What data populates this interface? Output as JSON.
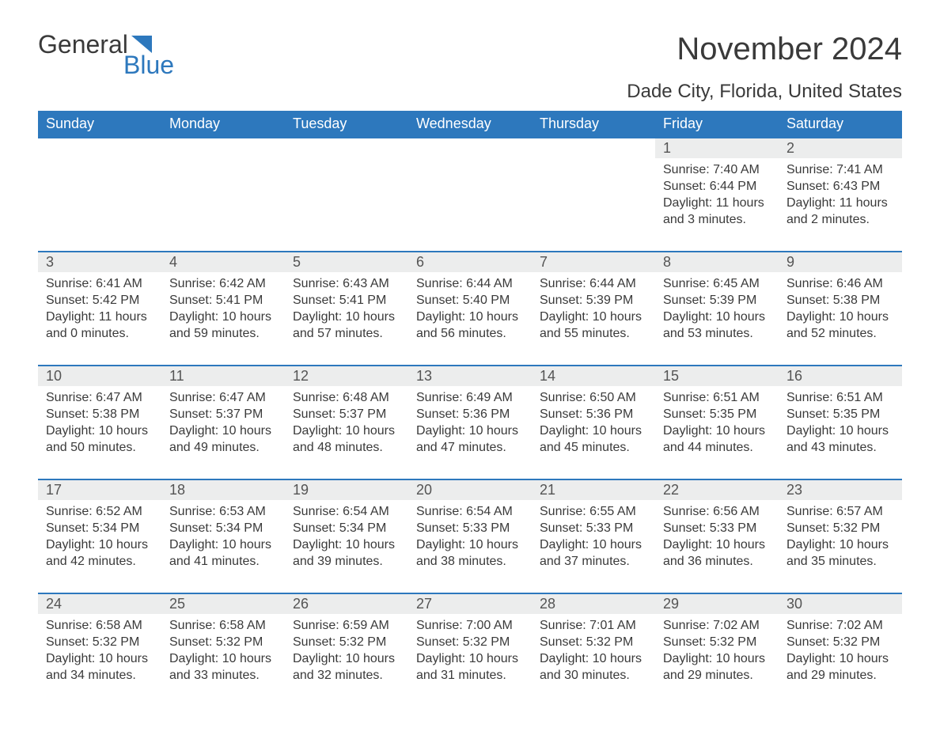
{
  "logo": {
    "top": "General",
    "bottom": "Blue"
  },
  "title": "November 2024",
  "subtitle": "Dade City, Florida, United States",
  "colors": {
    "header_bg": "#2d78bd",
    "header_fg": "#ffffff",
    "daynum_bg": "#eceded",
    "border": "#2d78bd",
    "text": "#3a3a3a",
    "logo_blue": "#2d78bd"
  },
  "day_headers": [
    "Sunday",
    "Monday",
    "Tuesday",
    "Wednesday",
    "Thursday",
    "Friday",
    "Saturday"
  ],
  "weeks": [
    [
      null,
      null,
      null,
      null,
      null,
      {
        "n": "1",
        "sr": "7:40 AM",
        "ss": "6:44 PM",
        "dl": "11 hours and 3 minutes."
      },
      {
        "n": "2",
        "sr": "7:41 AM",
        "ss": "6:43 PM",
        "dl": "11 hours and 2 minutes."
      }
    ],
    [
      {
        "n": "3",
        "sr": "6:41 AM",
        "ss": "5:42 PM",
        "dl": "11 hours and 0 minutes."
      },
      {
        "n": "4",
        "sr": "6:42 AM",
        "ss": "5:41 PM",
        "dl": "10 hours and 59 minutes."
      },
      {
        "n": "5",
        "sr": "6:43 AM",
        "ss": "5:41 PM",
        "dl": "10 hours and 57 minutes."
      },
      {
        "n": "6",
        "sr": "6:44 AM",
        "ss": "5:40 PM",
        "dl": "10 hours and 56 minutes."
      },
      {
        "n": "7",
        "sr": "6:44 AM",
        "ss": "5:39 PM",
        "dl": "10 hours and 55 minutes."
      },
      {
        "n": "8",
        "sr": "6:45 AM",
        "ss": "5:39 PM",
        "dl": "10 hours and 53 minutes."
      },
      {
        "n": "9",
        "sr": "6:46 AM",
        "ss": "5:38 PM",
        "dl": "10 hours and 52 minutes."
      }
    ],
    [
      {
        "n": "10",
        "sr": "6:47 AM",
        "ss": "5:38 PM",
        "dl": "10 hours and 50 minutes."
      },
      {
        "n": "11",
        "sr": "6:47 AM",
        "ss": "5:37 PM",
        "dl": "10 hours and 49 minutes."
      },
      {
        "n": "12",
        "sr": "6:48 AM",
        "ss": "5:37 PM",
        "dl": "10 hours and 48 minutes."
      },
      {
        "n": "13",
        "sr": "6:49 AM",
        "ss": "5:36 PM",
        "dl": "10 hours and 47 minutes."
      },
      {
        "n": "14",
        "sr": "6:50 AM",
        "ss": "5:36 PM",
        "dl": "10 hours and 45 minutes."
      },
      {
        "n": "15",
        "sr": "6:51 AM",
        "ss": "5:35 PM",
        "dl": "10 hours and 44 minutes."
      },
      {
        "n": "16",
        "sr": "6:51 AM",
        "ss": "5:35 PM",
        "dl": "10 hours and 43 minutes."
      }
    ],
    [
      {
        "n": "17",
        "sr": "6:52 AM",
        "ss": "5:34 PM",
        "dl": "10 hours and 42 minutes."
      },
      {
        "n": "18",
        "sr": "6:53 AM",
        "ss": "5:34 PM",
        "dl": "10 hours and 41 minutes."
      },
      {
        "n": "19",
        "sr": "6:54 AM",
        "ss": "5:34 PM",
        "dl": "10 hours and 39 minutes."
      },
      {
        "n": "20",
        "sr": "6:54 AM",
        "ss": "5:33 PM",
        "dl": "10 hours and 38 minutes."
      },
      {
        "n": "21",
        "sr": "6:55 AM",
        "ss": "5:33 PM",
        "dl": "10 hours and 37 minutes."
      },
      {
        "n": "22",
        "sr": "6:56 AM",
        "ss": "5:33 PM",
        "dl": "10 hours and 36 minutes."
      },
      {
        "n": "23",
        "sr": "6:57 AM",
        "ss": "5:32 PM",
        "dl": "10 hours and 35 minutes."
      }
    ],
    [
      {
        "n": "24",
        "sr": "6:58 AM",
        "ss": "5:32 PM",
        "dl": "10 hours and 34 minutes."
      },
      {
        "n": "25",
        "sr": "6:58 AM",
        "ss": "5:32 PM",
        "dl": "10 hours and 33 minutes."
      },
      {
        "n": "26",
        "sr": "6:59 AM",
        "ss": "5:32 PM",
        "dl": "10 hours and 32 minutes."
      },
      {
        "n": "27",
        "sr": "7:00 AM",
        "ss": "5:32 PM",
        "dl": "10 hours and 31 minutes."
      },
      {
        "n": "28",
        "sr": "7:01 AM",
        "ss": "5:32 PM",
        "dl": "10 hours and 30 minutes."
      },
      {
        "n": "29",
        "sr": "7:02 AM",
        "ss": "5:32 PM",
        "dl": "10 hours and 29 minutes."
      },
      {
        "n": "30",
        "sr": "7:02 AM",
        "ss": "5:32 PM",
        "dl": "10 hours and 29 minutes."
      }
    ]
  ],
  "labels": {
    "sunrise": "Sunrise: ",
    "sunset": "Sunset: ",
    "daylight": "Daylight: "
  }
}
